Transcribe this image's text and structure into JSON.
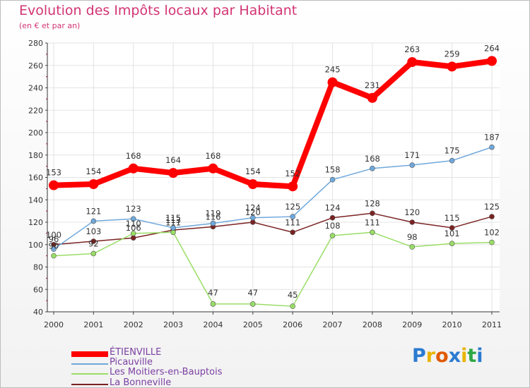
{
  "header": {
    "title": "Evolution des Impôts locaux par Habitant",
    "subtitle": "(en € et par an)"
  },
  "logo": {
    "text": "Proxiti"
  },
  "chart_data": {
    "type": "line",
    "title": "Evolution des Impôts locaux par Habitant",
    "subtitle": "(en € et par an)",
    "xlabel": "",
    "ylabel": "",
    "x": [
      "2000",
      "2001",
      "2002",
      "2003",
      "2004",
      "2005",
      "2006",
      "2007",
      "2008",
      "2009",
      "2010",
      "2011"
    ],
    "ylim": [
      40,
      280
    ],
    "yticks": [
      "40",
      "60",
      "80",
      "100",
      "120",
      "140",
      "160",
      "180",
      "200",
      "220",
      "240",
      "260",
      "280"
    ],
    "grid": true,
    "legend_position": "bottom-left",
    "series": [
      {
        "name": "ÉTIENVILLE",
        "color": "#ff0000",
        "values": [
          153,
          154,
          168,
          164,
          168,
          154,
          152,
          245,
          231,
          263,
          259,
          264
        ],
        "labels": [
          "153",
          "154",
          "168",
          "164",
          "168",
          "154",
          "152",
          "245",
          "231",
          "263",
          "259",
          "264"
        ]
      },
      {
        "name": "Picauville",
        "color": "#6fa8dc",
        "values": [
          96,
          121,
          123,
          115,
          119,
          124,
          125,
          158,
          168,
          171,
          175,
          187
        ],
        "labels": [
          "96",
          "121",
          "123",
          "115",
          "119",
          "124",
          "125",
          "158",
          "168",
          "171",
          "175",
          "187"
        ]
      },
      {
        "name": "Les Moitiers-en-Bauptois",
        "color": "#99dd66",
        "values": [
          90,
          92,
          110,
          111,
          47,
          47,
          45,
          108,
          111,
          98,
          101,
          102
        ],
        "labels": [
          "90",
          "92",
          "110",
          "111",
          "47",
          "47",
          "45",
          "108",
          "111",
          "98",
          "101",
          "102"
        ]
      },
      {
        "name": "La Bonneville",
        "color": "#7a2222",
        "values": [
          100,
          103,
          106,
          113,
          116,
          120,
          111,
          124,
          128,
          120,
          115,
          125
        ],
        "labels": [
          "100",
          "103",
          "106",
          "113",
          "116",
          "120",
          "111",
          "124",
          "128",
          "120",
          "115",
          "125"
        ]
      }
    ]
  }
}
